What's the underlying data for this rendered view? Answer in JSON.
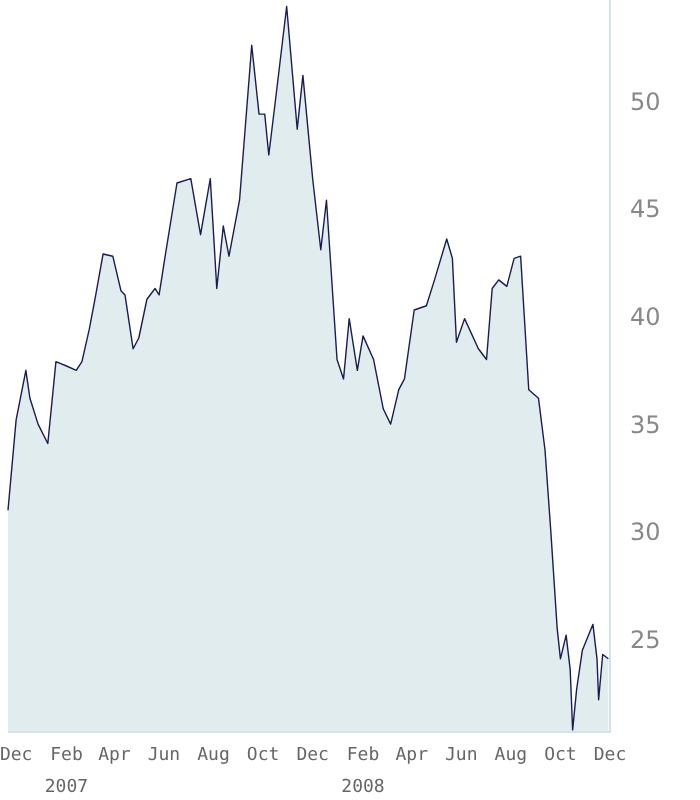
{
  "chart_data": {
    "type": "area",
    "x": [
      "2006-11-21",
      "2006-12-01",
      "2006-12-13",
      "2006-12-18",
      "2006-12-28",
      "2007-01-09",
      "2007-01-19",
      "2007-02-01",
      "2007-02-13",
      "2007-02-20",
      "2007-03-01",
      "2007-03-08",
      "2007-03-18",
      "2007-03-30",
      "2007-04-09",
      "2007-04-14",
      "2007-04-24",
      "2007-05-01",
      "2007-05-11",
      "2007-05-21",
      "2007-05-26",
      "2007-06-02",
      "2007-06-17",
      "2007-07-04",
      "2007-07-16",
      "2007-07-28",
      "2007-08-05",
      "2007-08-13",
      "2007-08-20",
      "2007-09-02",
      "2007-09-17",
      "2007-09-26",
      "2007-10-03",
      "2007-10-08",
      "2007-10-18",
      "2007-10-30",
      "2007-11-12",
      "2007-11-19",
      "2007-12-01",
      "2007-12-11",
      "2007-12-18",
      "2007-12-31",
      "2008-01-08",
      "2008-01-15",
      "2008-01-25",
      "2008-02-01",
      "2008-02-14",
      "2008-02-26",
      "2008-03-06",
      "2008-03-16",
      "2008-03-23",
      "2008-04-04",
      "2008-04-19",
      "2008-04-29",
      "2008-05-14",
      "2008-05-21",
      "2008-05-26",
      "2008-06-05",
      "2008-06-22",
      "2008-07-02",
      "2008-07-09",
      "2008-07-17",
      "2008-07-27",
      "2008-08-05",
      "2008-08-13",
      "2008-08-23",
      "2008-09-04",
      "2008-09-12",
      "2008-09-19",
      "2008-09-27",
      "2008-10-01",
      "2008-10-08",
      "2008-10-13",
      "2008-10-16",
      "2008-10-21",
      "2008-10-28",
      "2008-11-10",
      "2008-11-15",
      "2008-11-17",
      "2008-11-22",
      "2008-11-29"
    ],
    "series": [
      {
        "color": "#1a1c52",
        "values": [
          31.0,
          35.2,
          37.5,
          36.2,
          35.0,
          34.1,
          37.9,
          37.7,
          37.5,
          37.9,
          39.4,
          40.8,
          42.9,
          42.8,
          41.2,
          41.0,
          38.5,
          39.0,
          40.8,
          41.3,
          41.0,
          42.7,
          46.2,
          46.4,
          43.8,
          46.4,
          41.3,
          44.2,
          42.8,
          45.4,
          52.6,
          49.4,
          49.4,
          47.5,
          50.6,
          54.4,
          48.7,
          51.2,
          46.4,
          43.1,
          45.4,
          38.0,
          37.1,
          39.9,
          37.5,
          39.1,
          38.0,
          35.7,
          35.0,
          36.6,
          37.1,
          40.3,
          40.5,
          41.7,
          43.6,
          42.7,
          38.8,
          39.9,
          38.5,
          38.0,
          41.3,
          41.7,
          41.4,
          42.7,
          42.8,
          36.6,
          36.2,
          33.8,
          30.1,
          25.5,
          24.1,
          25.2,
          23.6,
          20.8,
          22.7,
          24.5,
          25.7,
          24.1,
          22.2,
          24.3,
          24.1
        ]
      }
    ],
    "xlim": [
      "2006-11-21",
      "2008-12-01"
    ],
    "xticks": [
      {
        "value": "2006-12-01",
        "label": "Dec"
      },
      {
        "value": "2007-02-01",
        "label": "Feb\n2007"
      },
      {
        "value": "2007-04-01",
        "label": "Apr"
      },
      {
        "value": "2007-06-01",
        "label": "Jun"
      },
      {
        "value": "2007-08-01",
        "label": "Aug"
      },
      {
        "value": "2007-10-01",
        "label": "Oct"
      },
      {
        "value": "2007-12-01",
        "label": "Dec"
      },
      {
        "value": "2008-02-01",
        "label": "Feb\n2008"
      },
      {
        "value": "2008-04-01",
        "label": "Apr"
      },
      {
        "value": "2008-06-01",
        "label": "Jun"
      },
      {
        "value": "2008-08-01",
        "label": "Aug"
      },
      {
        "value": "2008-10-01",
        "label": "Oct"
      },
      {
        "value": "2008-12-01",
        "label": "Dec"
      }
    ],
    "ylim": [
      20.7,
      54.7
    ],
    "yticks": [
      25,
      30,
      35,
      40,
      45,
      50
    ],
    "grid": false,
    "marker": "none"
  }
}
